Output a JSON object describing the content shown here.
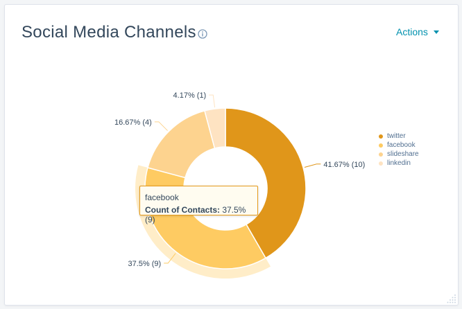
{
  "header": {
    "title": "Social Media Channels",
    "info_icon": "info-circle-icon",
    "actions_label": "Actions"
  },
  "chart_data": {
    "type": "donut",
    "title": "Social Media Channels",
    "slices": [
      {
        "name": "twitter",
        "value": 10,
        "label": "41.67% (10)",
        "color": "#e0961a"
      },
      {
        "name": "facebook",
        "value": 9,
        "label": "37.5% (9)",
        "color": "#fecb62"
      },
      {
        "name": "slideshare",
        "value": 4,
        "label": "16.67% (4)",
        "color": "#fdd38f"
      },
      {
        "name": "linkedin",
        "value": 1,
        "label": "4.17% (1)",
        "color": "#fee3c2"
      }
    ],
    "highlighted": "facebook",
    "legend_position": "right"
  },
  "tooltip": {
    "series": "facebook",
    "label": "Count of Contacts:",
    "value": "37.5% (9)"
  },
  "colors": {
    "accent": "#0091ae",
    "text": "#33475b",
    "tooltip_border": "#e59a1a"
  }
}
